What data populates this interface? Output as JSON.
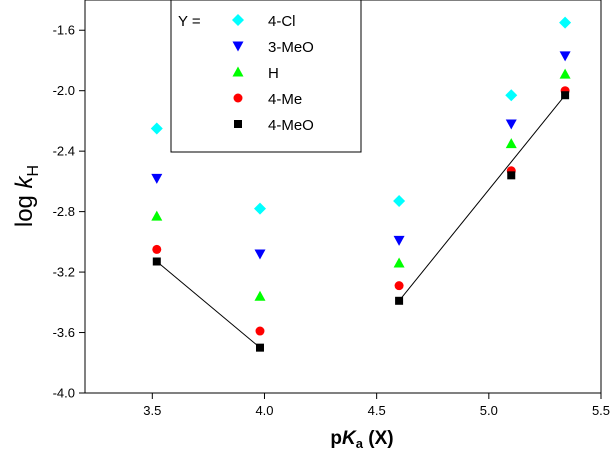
{
  "chart_data": {
    "type": "scatter",
    "title": "",
    "xlabel": {
      "prefix": "p",
      "main": "K",
      "sub": "a",
      "suffix": " (X)"
    },
    "ylabel": {
      "main": "log ",
      "italic": "k",
      "sub": "H"
    },
    "xlim": [
      3.2,
      5.5
    ],
    "ylim": [
      -4.0,
      -1.4
    ],
    "xticks": [
      3.5,
      4.0,
      4.5,
      5.0,
      5.5
    ],
    "xtick_labels": [
      "3.5",
      "4.0",
      "4.5",
      "5.0",
      "5.5"
    ],
    "yticks": [
      -4.0,
      -3.6,
      -3.2,
      -2.8,
      -2.4,
      -2.0,
      -1.6
    ],
    "ytick_labels": [
      "-4.0",
      "-3.6",
      "-3.2",
      "-2.8",
      "-2.4",
      "-2.0",
      "-1.6"
    ],
    "legend": {
      "title": "Y  =",
      "placement": "top-left"
    },
    "x": [
      3.52,
      3.98,
      4.6,
      5.1,
      5.34
    ],
    "series": [
      {
        "name": "4-Cl",
        "marker": "diamond",
        "color": "#00FFFF",
        "values": [
          -2.25,
          -2.78,
          -2.73,
          -2.03,
          -1.55
        ]
      },
      {
        "name": "3-MeO",
        "marker": "triangle-down",
        "color": "#0000FF",
        "values": [
          -2.58,
          -3.08,
          -2.99,
          -2.22,
          -1.77
        ]
      },
      {
        "name": "H",
        "marker": "triangle-up",
        "color": "#00FF00",
        "values": [
          -2.83,
          -3.36,
          -3.14,
          -2.35,
          -1.89
        ]
      },
      {
        "name": "4-Me",
        "marker": "circle",
        "color": "#FF0000",
        "values": [
          -3.05,
          -3.59,
          -3.29,
          -2.53,
          -2.0
        ]
      },
      {
        "name": "4-MeO",
        "marker": "square",
        "color": "#000000",
        "values": [
          -3.13,
          -3.7,
          -3.39,
          -2.56,
          -2.03
        ]
      }
    ],
    "fit_lines": [
      {
        "series": "4-MeO",
        "x": [
          3.52,
          3.98
        ]
      },
      {
        "series": "4-MeO",
        "x": [
          4.6,
          5.34
        ]
      }
    ]
  }
}
